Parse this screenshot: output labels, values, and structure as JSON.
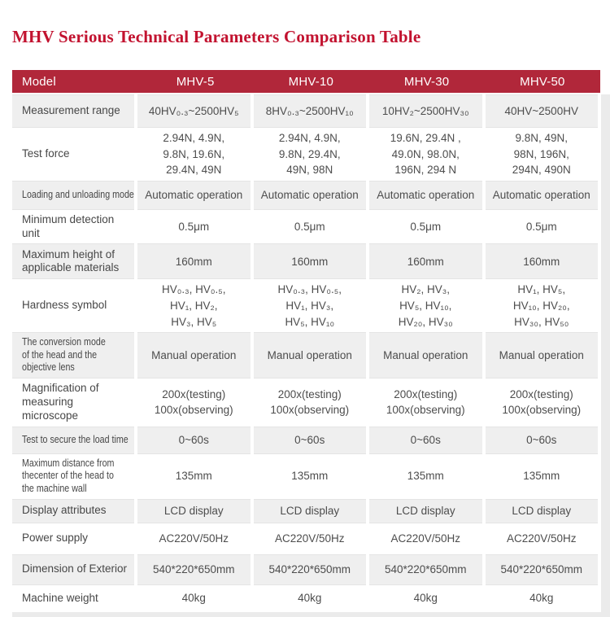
{
  "page": {
    "title": "MHV Serious Technical Parameters Comparison Table"
  },
  "colors": {
    "title_text": "#c2122f",
    "header_bg": "#b1273a",
    "header_text": "#ffffff",
    "row_alt_bg": "#efefef",
    "row_plain_bg": "#ffffff",
    "edge_strip": "#ebebeb",
    "body_text": "#4d4d4d"
  },
  "table": {
    "header": [
      "Model",
      "MHV-5",
      "MHV-10",
      "MHV-30",
      "MHV-50"
    ],
    "rows": [
      {
        "label": "Measurement range",
        "values": [
          "40HV₀.₃~2500HV₅",
          "8HV₀.₃~2500HV₁₀",
          "10HV₂~2500HV₃₀",
          "40HV~2500HV"
        ]
      },
      {
        "label": "Test force",
        "values": [
          "2.94N, 4.9N,\n9.8N, 19.6N,\n29.4N, 49N",
          "2.94N, 4.9N,\n9.8N, 29.4N,\n49N, 98N",
          "19.6N, 29.4N ,\n49.0N, 98.0N,\n196N, 294 N",
          "9.8N, 49N,\n98N, 196N,\n294N, 490N"
        ]
      },
      {
        "label": "Loading and unloading mode",
        "values": [
          "Automatic operation",
          "Automatic operation",
          "Automatic operation",
          "Automatic operation"
        ]
      },
      {
        "label": "Minimum detection unit",
        "values": [
          "0.5μm",
          "0.5μm",
          "0.5μm",
          "0.5μm"
        ]
      },
      {
        "label": "Maximum height of applicable materials",
        "values": [
          "160mm",
          "160mm",
          "160mm",
          "160mm"
        ]
      },
      {
        "label": "Hardness symbol",
        "values": [
          "HV₀.₃, HV₀.₅,\nHV₁, HV₂,\nHV₃, HV₅",
          "HV₀.₃, HV₀.₅,\nHV₁, HV₃,\nHV₅, HV₁₀",
          "HV₂, HV₃,\nHV₅, HV₁₀,\nHV₂₀, HV₃₀",
          "HV₁, HV₅,\nHV₁₀, HV₂₀,\nHV₃₀, HV₅₀"
        ]
      },
      {
        "label": "The conversion mode of the head and the objective lens",
        "values": [
          "Manual operation",
          "Manual operation",
          "Manual operation",
          "Manual operation"
        ]
      },
      {
        "label": "Magnification of measuring microscope",
        "values": [
          "200x(testing)\n100x(observing)",
          "200x(testing)\n100x(observing)",
          "200x(testing)\n100x(observing)",
          "200x(testing)\n100x(observing)"
        ]
      },
      {
        "label": "Test to secure the load time",
        "values": [
          "0~60s",
          "0~60s",
          "0~60s",
          "0~60s"
        ]
      },
      {
        "label": "Maximum distance from thecenter of the head to the machine wall",
        "values": [
          "135mm",
          "135mm",
          "135mm",
          "135mm"
        ]
      },
      {
        "label": "Display attributes",
        "values": [
          "LCD display",
          "LCD display",
          "LCD display",
          "LCD display"
        ]
      },
      {
        "label": "Power supply",
        "values": [
          "AC220V/50Hz",
          "AC220V/50Hz",
          "AC220V/50Hz",
          "AC220V/50Hz"
        ]
      },
      {
        "label": "Dimension of Exterior",
        "values": [
          "540*220*650mm",
          "540*220*650mm",
          "540*220*650mm",
          "540*220*650mm"
        ]
      },
      {
        "label": "Machine weight",
        "values": [
          "40kg",
          "40kg",
          "40kg",
          "40kg"
        ]
      }
    ]
  }
}
